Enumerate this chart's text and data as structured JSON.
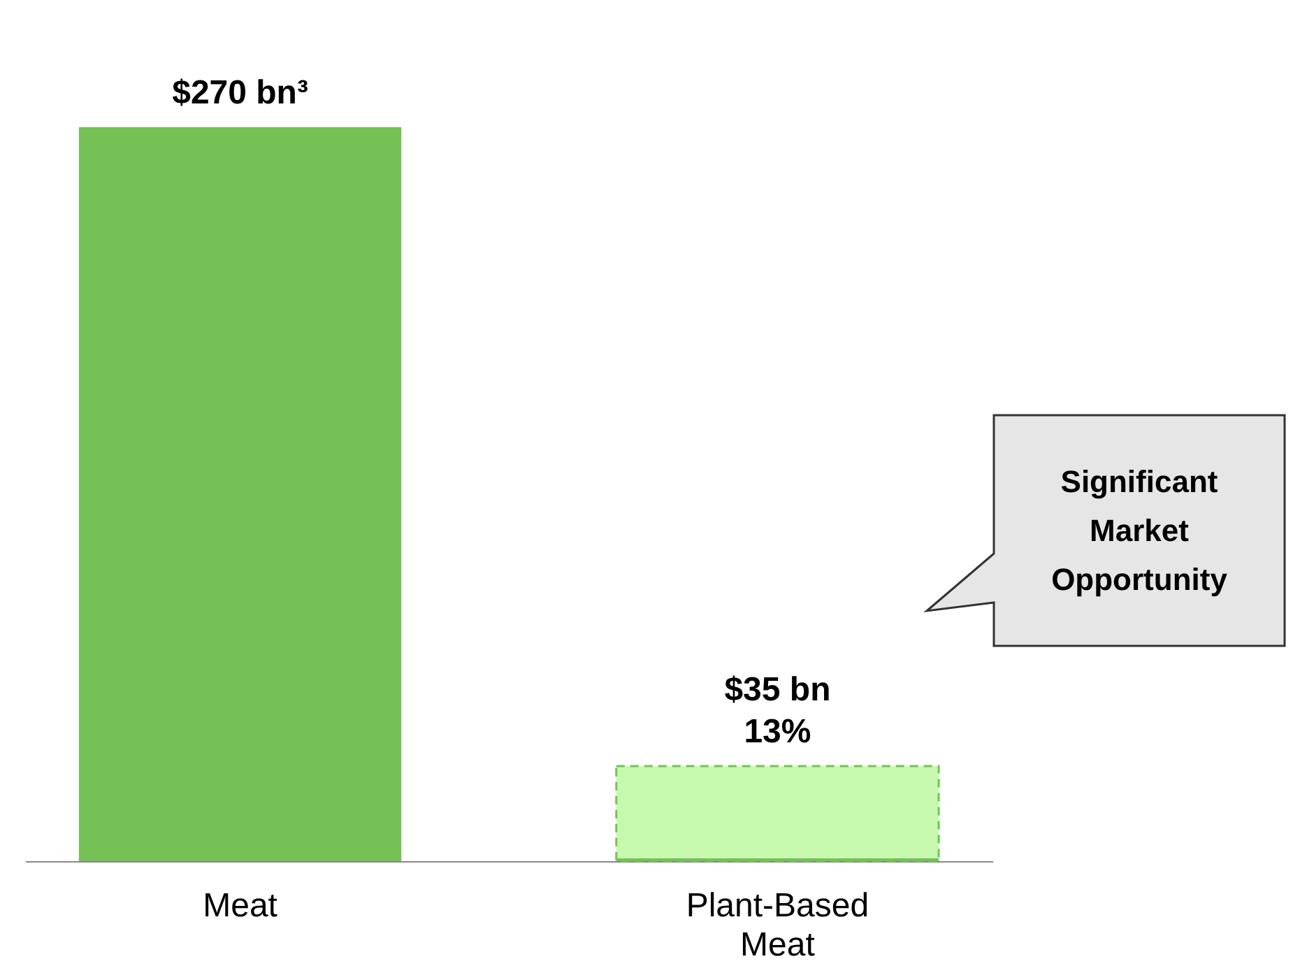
{
  "chart_data": {
    "type": "bar",
    "tick_labels": "x",
    "categories": [
      "Meat",
      "Plant-Based Meat"
    ],
    "series": [
      {
        "color": "#75c156",
        "values": [
          270,
          1
        ],
        "value_labels": [
          "$270 bn³",
          null
        ]
      },
      {
        "color": "#c6f9ae",
        "line_style": "dashed",
        "values": [
          null,
          35
        ],
        "value_labels": [
          null,
          "$35 bn"
        ]
      }
    ],
    "annotations": [
      "Significant Market Opportunity",
      {
        "text": "13%",
        "x": "Plant-Based Meat",
        "y": 35
      }
    ]
  }
}
